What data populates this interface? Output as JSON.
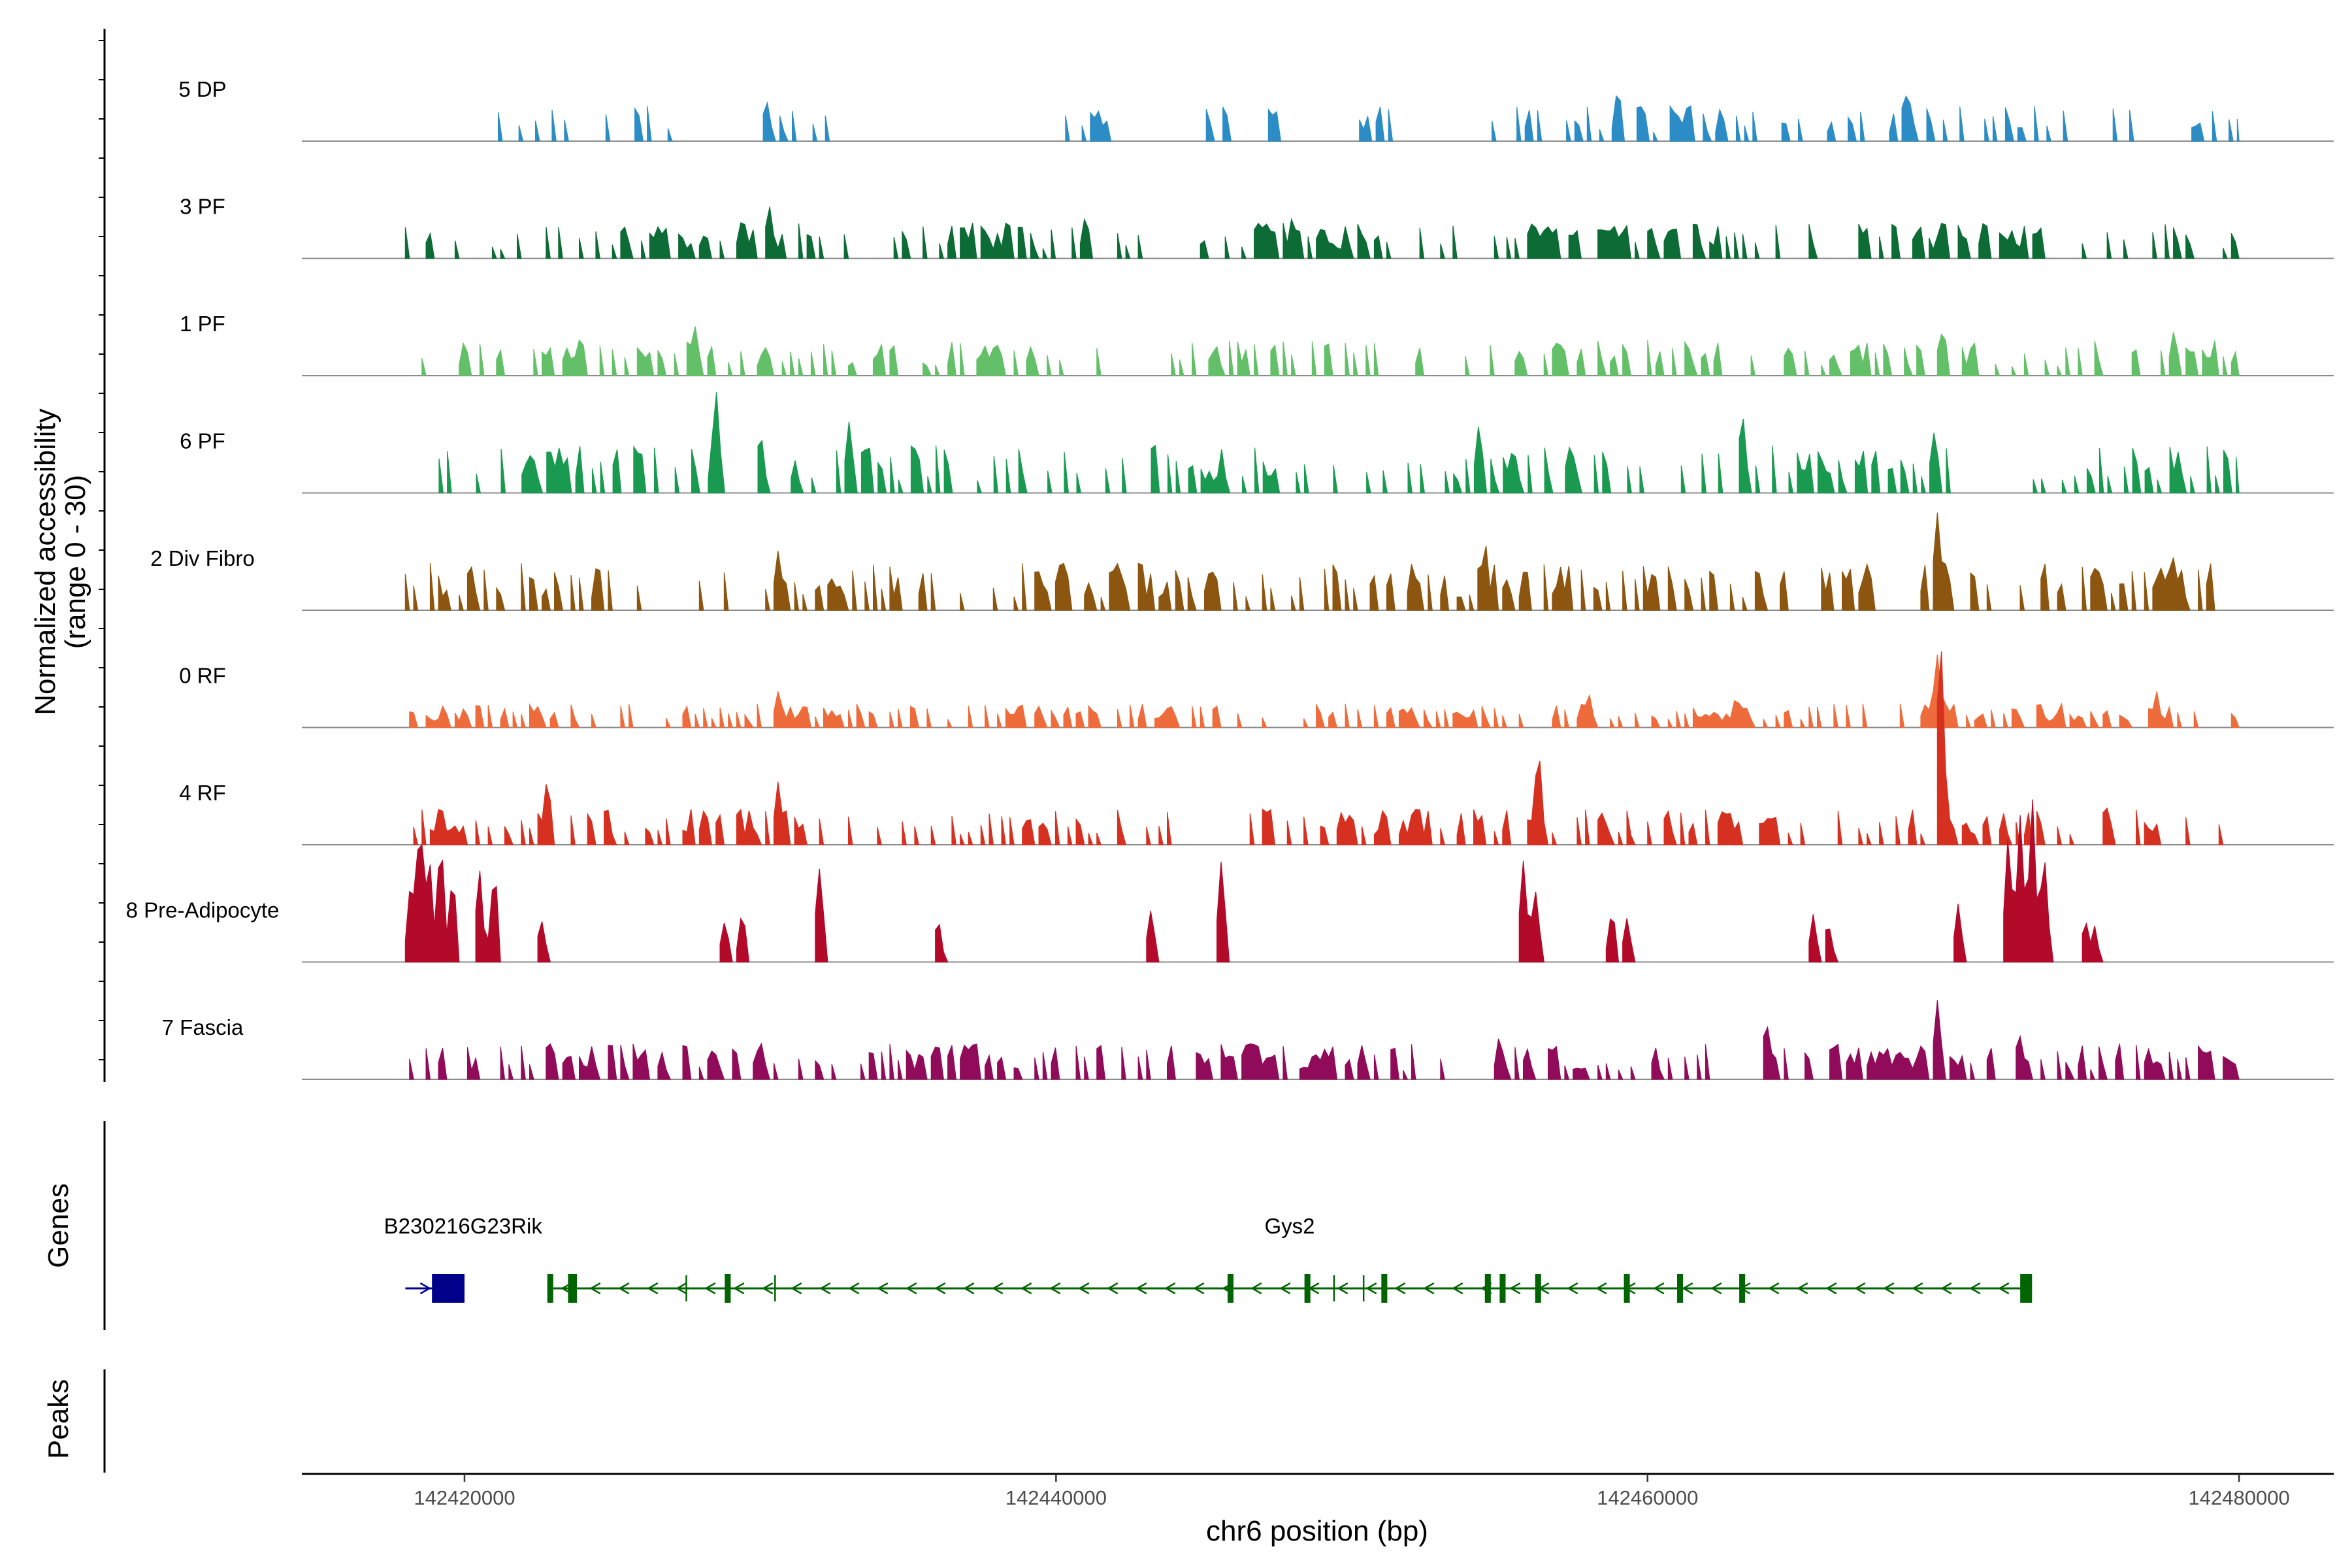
{
  "chart_data": {
    "type": "coverage_track",
    "chromosome": "chr6",
    "xlabel": "chr6 position (bp)",
    "xlim": [
      142414500,
      142483200
    ],
    "region": [
      142417000,
      142480000
    ],
    "x_ticks": [
      {
        "value": 142420000,
        "label": "142420000"
      },
      {
        "value": 142440000,
        "label": "142440000"
      },
      {
        "value": 142460000,
        "label": "142460000"
      },
      {
        "value": 142480000,
        "label": "142480000"
      }
    ],
    "coverage": {
      "ylabel_line1": "Normalized accessibility",
      "ylabel_line2": "(range 0 - 30)",
      "ylim": [
        0,
        30
      ],
      "series": [
        {
          "name": "5 DP",
          "color": "#2C8CC6",
          "density": 0.28,
          "base": 3,
          "range": [
            142421000,
            142480000
          ],
          "gaps": [
            [
              142427000,
              142430000
            ],
            [
              142433000,
              142440000
            ]
          ],
          "peaks": [
            {
              "pos": 142420700,
              "value": 6
            },
            {
              "pos": 142430200,
              "value": 5
            },
            {
              "pos": 142459000,
              "value": 6
            },
            {
              "pos": 142468800,
              "value": 6
            }
          ]
        },
        {
          "name": "3 PF",
          "color": "#0D6B35",
          "density": 0.4,
          "base": 3,
          "range": [
            142418000,
            142480000
          ],
          "gaps": [],
          "peaks": [
            {
              "pos": 142430300,
              "value": 6
            },
            {
              "pos": 142441000,
              "value": 5
            },
            {
              "pos": 142448000,
              "value": 5
            },
            {
              "pos": 142470000,
              "value": 5
            }
          ]
        },
        {
          "name": "1 PF",
          "color": "#63C069",
          "density": 0.38,
          "base": 3,
          "range": [
            142418000,
            142480000
          ],
          "gaps": [],
          "peaks": [
            {
              "pos": 142420000,
              "value": 4
            },
            {
              "pos": 142427800,
              "value": 5
            },
            {
              "pos": 142457000,
              "value": 4
            },
            {
              "pos": 142470000,
              "value": 6
            },
            {
              "pos": 142477800,
              "value": 5
            }
          ]
        },
        {
          "name": "6 PF",
          "color": "#1A9A50",
          "density": 0.42,
          "base": 4,
          "range": [
            142419000,
            142480000
          ],
          "gaps": [],
          "peaks": [
            {
              "pos": 142428500,
              "value": 12
            },
            {
              "pos": 142430000,
              "value": 8
            },
            {
              "pos": 142433000,
              "value": 8
            },
            {
              "pos": 142454300,
              "value": 8
            },
            {
              "pos": 142463200,
              "value": 9
            },
            {
              "pos": 142469700,
              "value": 7
            }
          ]
        },
        {
          "name": "2 Div Fibro",
          "color": "#8C5610",
          "density": 0.42,
          "base": 4,
          "range": [
            142418000,
            142480000
          ],
          "gaps": [],
          "peaks": [
            {
              "pos": 142420200,
              "value": 6
            },
            {
              "pos": 142424500,
              "value": 6
            },
            {
              "pos": 142430600,
              "value": 6
            },
            {
              "pos": 142454500,
              "value": 8
            },
            {
              "pos": 142469800,
              "value": 11
            },
            {
              "pos": 142477800,
              "value": 6
            }
          ]
        },
        {
          "name": "0 RF",
          "color": "#EE6B3B",
          "density": 0.45,
          "base": 2,
          "range": [
            142418000,
            142480000
          ],
          "gaps": [],
          "peaks": [
            {
              "pos": 142430600,
              "value": 4
            },
            {
              "pos": 142458000,
              "value": 4
            },
            {
              "pos": 142463000,
              "value": 4
            },
            {
              "pos": 142469800,
              "value": 8
            },
            {
              "pos": 142477200,
              "value": 4
            }
          ]
        },
        {
          "name": "4 RF",
          "color": "#D63120",
          "density": 0.4,
          "base": 3,
          "range": [
            142418000,
            142480000
          ],
          "gaps": [],
          "peaks": [
            {
              "pos": 142422800,
              "value": 8
            },
            {
              "pos": 142424800,
              "value": 5
            },
            {
              "pos": 142430600,
              "value": 7
            },
            {
              "pos": 142456300,
              "value": 11
            },
            {
              "pos": 142469900,
              "value": 26
            },
            {
              "pos": 142475500,
              "value": 5
            }
          ]
        },
        {
          "name": "8 Pre-Adipocyte",
          "color": "#B30A2A",
          "density": 0.0,
          "base": 0,
          "range": [
            142418000,
            142480000
          ],
          "gaps": [],
          "peaks": [
            {
              "pos": 142418200,
              "value": 10
            },
            {
              "pos": 142418500,
              "value": 17
            },
            {
              "pos": 142418800,
              "value": 13
            },
            {
              "pos": 142419200,
              "value": 14
            },
            {
              "pos": 142419600,
              "value": 11
            },
            {
              "pos": 142420500,
              "value": 10
            },
            {
              "pos": 142421000,
              "value": 11
            },
            {
              "pos": 142422600,
              "value": 5
            },
            {
              "pos": 142428800,
              "value": 5
            },
            {
              "pos": 142429400,
              "value": 6
            },
            {
              "pos": 142432000,
              "value": 11
            },
            {
              "pos": 142436000,
              "value": 5
            },
            {
              "pos": 142443200,
              "value": 6
            },
            {
              "pos": 142445600,
              "value": 11
            },
            {
              "pos": 142455800,
              "value": 11
            },
            {
              "pos": 142456200,
              "value": 9
            },
            {
              "pos": 142458800,
              "value": 6
            },
            {
              "pos": 142459300,
              "value": 5
            },
            {
              "pos": 142465600,
              "value": 5
            },
            {
              "pos": 142466100,
              "value": 5
            },
            {
              "pos": 142470500,
              "value": 6
            },
            {
              "pos": 142472200,
              "value": 14
            },
            {
              "pos": 142472600,
              "value": 17
            },
            {
              "pos": 142473000,
              "value": 18
            },
            {
              "pos": 142473400,
              "value": 13
            },
            {
              "pos": 142474800,
              "value": 5
            },
            {
              "pos": 142475100,
              "value": 4
            }
          ]
        },
        {
          "name": "7 Fascia",
          "color": "#900C5A",
          "density": 0.5,
          "base": 3,
          "range": [
            142418000,
            142480000
          ],
          "gaps": [],
          "peaks": [
            {
              "pos": 142430000,
              "value": 5
            },
            {
              "pos": 142455000,
              "value": 5
            },
            {
              "pos": 142464000,
              "value": 7
            },
            {
              "pos": 142469800,
              "value": 9
            },
            {
              "pos": 142472600,
              "value": 5
            }
          ]
        }
      ]
    },
    "genes": {
      "ylabel": "Genes",
      "items": [
        {
          "name": "B230216G23Rik",
          "strand": "+",
          "color": "#00008B",
          "start": 142418000,
          "end": 142420000,
          "exons": [
            [
              142418900,
              142420000
            ]
          ]
        },
        {
          "name": "Gys2",
          "strand": "-",
          "color": "#006400",
          "start": 142422800,
          "end": 142473000,
          "exons": [
            [
              142422800,
              142423000
            ],
            [
              142423500,
              142423800
            ],
            [
              142428800,
              142429000
            ],
            [
              142445800,
              142446000
            ],
            [
              142448400,
              142448600
            ],
            [
              142451000,
              142451200
            ],
            [
              142454500,
              142454700
            ],
            [
              142455000,
              142455200
            ],
            [
              142456200,
              142456400
            ],
            [
              142459200,
              142459400
            ],
            [
              142461000,
              142461200
            ],
            [
              142463100,
              142463300
            ],
            [
              142472600,
              142473000
            ]
          ],
          "introns_ticks": [
            142427500,
            142430500,
            142449400,
            142450400
          ]
        }
      ]
    },
    "peaks_track": {
      "ylabel": "Peaks",
      "regions": []
    }
  }
}
